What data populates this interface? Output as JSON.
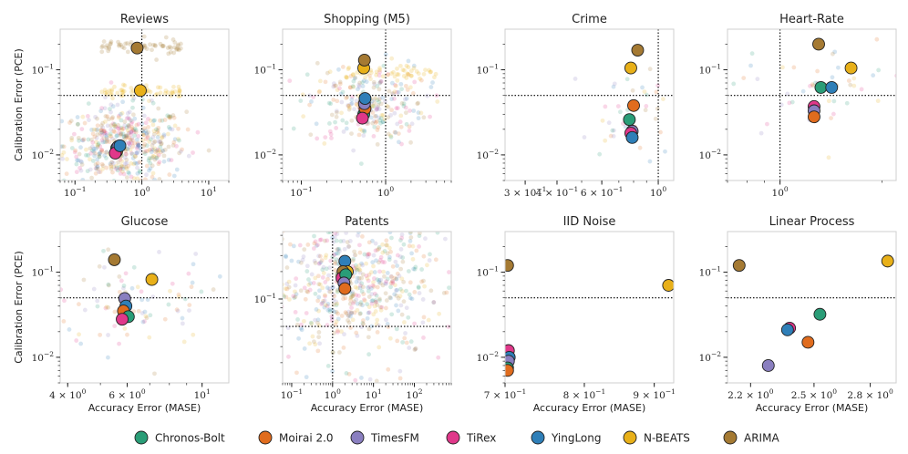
{
  "chart_data": [
    {
      "type": "scatter",
      "title": "Reviews",
      "xscale": "log",
      "yscale": "log",
      "xlim": [
        0.06,
        20
      ],
      "ylim": [
        0.005,
        0.3
      ],
      "xticks": [
        {
          "v": 0.1,
          "b": "10",
          "e": "−1"
        },
        {
          "v": 1,
          "b": "10",
          "e": "0"
        },
        {
          "v": 10,
          "b": "10",
          "e": "1"
        }
      ],
      "yticks": [
        {
          "v": 0.01,
          "b": "10",
          "e": "−2"
        },
        {
          "v": 0.1,
          "b": "10",
          "e": "−1"
        }
      ],
      "ref_x": 1,
      "ref_y": 0.05,
      "ylabel": "Calibration Error (PCE)",
      "xlabel": "",
      "cloud": {
        "n": 520,
        "x_center": 0.55,
        "x_spread": 1.3,
        "y_center": 0.013,
        "y_spread": 0.5,
        "extra": [
          {
            "model": "ARIMA",
            "n": 60,
            "y": 0.19,
            "x0": 0.25,
            "x1": 4
          },
          {
            "model": "N-BEATS",
            "n": 60,
            "y": 0.055,
            "x0": 0.25,
            "x1": 4
          }
        ]
      },
      "points": [
        {
          "model": "ARIMA",
          "x": 0.85,
          "y": 0.18
        },
        {
          "model": "N-BEATS",
          "x": 0.95,
          "y": 0.057
        },
        {
          "model": "Chronos-Bolt",
          "x": 0.42,
          "y": 0.012
        },
        {
          "model": "Moirai 2.0",
          "x": 0.42,
          "y": 0.011
        },
        {
          "model": "TimesFM",
          "x": 0.44,
          "y": 0.0125
        },
        {
          "model": "TiRex",
          "x": 0.4,
          "y": 0.0105
        },
        {
          "model": "YingLong",
          "x": 0.47,
          "y": 0.0128
        }
      ]
    },
    {
      "type": "scatter",
      "title": "Shopping (M5)",
      "xscale": "log",
      "yscale": "log",
      "xlim": [
        0.06,
        6
      ],
      "ylim": [
        0.005,
        0.3
      ],
      "xticks": [
        {
          "v": 0.1,
          "b": "10",
          "e": "−1"
        },
        {
          "v": 1,
          "b": "10",
          "e": "0"
        }
      ],
      "yticks": [
        {
          "v": 0.01,
          "b": "10",
          "e": "−2"
        },
        {
          "v": 0.1,
          "b": "10",
          "e": "−1"
        }
      ],
      "ref_x": 1,
      "ref_y": 0.05,
      "ylabel": "",
      "xlabel": "",
      "cloud": {
        "n": 260,
        "x_center": 0.6,
        "x_spread": 1.0,
        "y_center": 0.04,
        "y_spread": 0.55,
        "extra": [
          {
            "model": "N-BEATS",
            "n": 50,
            "y": 0.09,
            "x0": 0.3,
            "x1": 4
          }
        ]
      },
      "points": [
        {
          "model": "N-BEATS",
          "x": 0.55,
          "y": 0.105
        },
        {
          "model": "ARIMA",
          "x": 0.56,
          "y": 0.13
        },
        {
          "model": "Chronos-Bolt",
          "x": 0.55,
          "y": 0.03
        },
        {
          "model": "Moirai 2.0",
          "x": 0.57,
          "y": 0.035
        },
        {
          "model": "TimesFM",
          "x": 0.56,
          "y": 0.04
        },
        {
          "model": "TiRex",
          "x": 0.53,
          "y": 0.027
        },
        {
          "model": "YingLong",
          "x": 0.57,
          "y": 0.046
        }
      ]
    },
    {
      "type": "scatter",
      "title": "Crime",
      "xscale": "log",
      "yscale": "log",
      "xlim": [
        0.25,
        1.15
      ],
      "ylim": [
        0.005,
        0.3
      ],
      "xticks": [
        {
          "v": 0.3,
          "b": "3 × 10",
          "e": "−1"
        },
        {
          "v": 0.4,
          "b": "4 × 10",
          "e": "−1"
        },
        {
          "v": 0.6,
          "b": "6 × 10",
          "e": "−1"
        },
        {
          "v": 1,
          "b": "10",
          "e": "0"
        }
      ],
      "yticks": [
        {
          "v": 0.01,
          "b": "10",
          "e": "−2"
        },
        {
          "v": 0.1,
          "b": "10",
          "e": "−1"
        }
      ],
      "ref_x": 1,
      "ref_y": 0.05,
      "ylabel": "",
      "xlabel": "",
      "cloud": {
        "n": 40,
        "x_center": 0.8,
        "x_spread": 0.25,
        "y_center": 0.03,
        "y_spread": 0.55,
        "extra": []
      },
      "points": [
        {
          "model": "ARIMA",
          "x": 0.83,
          "y": 0.17
        },
        {
          "model": "N-BEATS",
          "x": 0.78,
          "y": 0.105
        },
        {
          "model": "Moirai 2.0",
          "x": 0.8,
          "y": 0.038
        },
        {
          "model": "Chronos-Bolt",
          "x": 0.77,
          "y": 0.026
        },
        {
          "model": "TimesFM",
          "x": 0.79,
          "y": 0.019
        },
        {
          "model": "TiRex",
          "x": 0.78,
          "y": 0.018
        },
        {
          "model": "YingLong",
          "x": 0.79,
          "y": 0.016
        }
      ]
    },
    {
      "type": "scatter",
      "title": "Heart-Rate",
      "xscale": "log",
      "yscale": "log",
      "xlim": [
        0.7,
        2.2
      ],
      "ylim": [
        0.005,
        0.3
      ],
      "xticks": [
        {
          "v": 1,
          "b": "10",
          "e": "0"
        }
      ],
      "yticks": [
        {
          "v": 0.01,
          "b": "10",
          "e": "−2"
        },
        {
          "v": 0.1,
          "b": "10",
          "e": "−1"
        }
      ],
      "ref_x": 1,
      "ref_y": 0.05,
      "ylabel": "",
      "xlabel": "",
      "cloud": {
        "n": 45,
        "x_center": 1.3,
        "x_spread": 0.3,
        "y_center": 0.06,
        "y_spread": 0.6,
        "extra": []
      },
      "points": [
        {
          "model": "ARIMA",
          "x": 1.3,
          "y": 0.2
        },
        {
          "model": "N-BEATS",
          "x": 1.62,
          "y": 0.105
        },
        {
          "model": "Chronos-Bolt",
          "x": 1.32,
          "y": 0.062
        },
        {
          "model": "YingLong",
          "x": 1.42,
          "y": 0.062
        },
        {
          "model": "TiRex",
          "x": 1.26,
          "y": 0.037
        },
        {
          "model": "TimesFM",
          "x": 1.26,
          "y": 0.033
        },
        {
          "model": "Moirai 2.0",
          "x": 1.26,
          "y": 0.028
        }
      ]
    },
    {
      "type": "scatter",
      "title": "Glucose",
      "xscale": "log",
      "yscale": "log",
      "xlim": [
        3.8,
        12
      ],
      "ylim": [
        0.005,
        0.3
      ],
      "xticks": [
        {
          "v": 4,
          "b": "4 × 10",
          "e": "0"
        },
        {
          "v": 6,
          "b": "6 × 10",
          "e": "0"
        },
        {
          "v": 10,
          "b": "10",
          "e": "1"
        }
      ],
      "yticks": [
        {
          "v": 0.01,
          "b": "10",
          "e": "−2"
        },
        {
          "v": 0.1,
          "b": "10",
          "e": "−1"
        }
      ],
      "ref_x": null,
      "ref_y": 0.05,
      "ylabel": "Calibration Error (PCE)",
      "xlabel": "Accuracy Error (MASE)",
      "cloud": {
        "n": 90,
        "x_center": 6,
        "x_spread": 0.35,
        "y_center": 0.05,
        "y_spread": 0.7,
        "extra": []
      },
      "points": [
        {
          "model": "ARIMA",
          "x": 5.5,
          "y": 0.14
        },
        {
          "model": "N-BEATS",
          "x": 7.1,
          "y": 0.082
        },
        {
          "model": "TimesFM",
          "x": 5.9,
          "y": 0.049
        },
        {
          "model": "YingLong",
          "x": 5.95,
          "y": 0.04
        },
        {
          "model": "Moirai 2.0",
          "x": 5.85,
          "y": 0.035
        },
        {
          "model": "Chronos-Bolt",
          "x": 6.05,
          "y": 0.03
        },
        {
          "model": "TiRex",
          "x": 5.8,
          "y": 0.028
        }
      ]
    },
    {
      "type": "scatter",
      "title": "Patents",
      "xscale": "log",
      "yscale": "log",
      "xlim": [
        0.06,
        800
      ],
      "ylim": [
        0.012,
        0.55
      ],
      "xticks": [
        {
          "v": 0.1,
          "b": "10",
          "e": "−1"
        },
        {
          "v": 1,
          "b": "10",
          "e": "0"
        },
        {
          "v": 10,
          "b": "10",
          "e": "1"
        },
        {
          "v": 100,
          "b": "10",
          "e": "2"
        }
      ],
      "yticks": [
        {
          "v": 0.1,
          "b": "10",
          "e": "−1"
        }
      ],
      "ref_x": 1,
      "ref_y": 0.05,
      "ylabel": "",
      "xlabel": "Accuracy Error (MASE)",
      "cloud": {
        "n": 650,
        "x_center": 3,
        "x_spread": 3.2,
        "y_center": 0.15,
        "y_spread": 0.9,
        "extra": []
      },
      "points": [
        {
          "model": "YingLong",
          "x": 2.0,
          "y": 0.26
        },
        {
          "model": "N-BEATS",
          "x": 2.3,
          "y": 0.2
        },
        {
          "model": "ARIMA",
          "x": 1.8,
          "y": 0.2
        },
        {
          "model": "TiRex",
          "x": 1.7,
          "y": 0.17
        },
        {
          "model": "Chronos-Bolt",
          "x": 2.1,
          "y": 0.185
        },
        {
          "model": "TimesFM",
          "x": 1.9,
          "y": 0.15
        },
        {
          "model": "Moirai 2.0",
          "x": 2.0,
          "y": 0.13
        }
      ]
    },
    {
      "type": "scatter",
      "title": "IID Noise",
      "xscale": "log",
      "yscale": "log",
      "xlim": [
        0.7,
        0.93
      ],
      "ylim": [
        0.005,
        0.3
      ],
      "xticks": [
        {
          "v": 0.7,
          "b": "7 × 10",
          "e": "−1"
        },
        {
          "v": 0.8,
          "b": "8 × 10",
          "e": "−1"
        },
        {
          "v": 0.9,
          "b": "9 × 10",
          "e": "−1"
        }
      ],
      "yticks": [
        {
          "v": 0.01,
          "b": "10",
          "e": "−2"
        },
        {
          "v": 0.1,
          "b": "10",
          "e": "−1"
        }
      ],
      "ref_x": null,
      "ref_y": 0.05,
      "ylabel": "",
      "xlabel": "Accuracy Error (MASE)",
      "cloud": {
        "n": 0,
        "x_center": 0.8,
        "x_spread": 0.1,
        "y_center": 0.02,
        "y_spread": 0.5,
        "extra": []
      },
      "points": [
        {
          "model": "ARIMA",
          "x": 0.703,
          "y": 0.12
        },
        {
          "model": "N-BEATS",
          "x": 0.922,
          "y": 0.07
        },
        {
          "model": "TiRex",
          "x": 0.704,
          "y": 0.012
        },
        {
          "model": "YingLong",
          "x": 0.705,
          "y": 0.01
        },
        {
          "model": "TimesFM",
          "x": 0.704,
          "y": 0.009
        },
        {
          "model": "Chronos-Bolt",
          "x": 0.703,
          "y": 0.0075
        },
        {
          "model": "Moirai 2.0",
          "x": 0.703,
          "y": 0.007
        }
      ]
    },
    {
      "type": "scatter",
      "title": "Linear Process",
      "xscale": "log",
      "yscale": "log",
      "xlim": [
        2.1,
        2.95
      ],
      "ylim": [
        0.005,
        0.3
      ],
      "xticks": [
        {
          "v": 2.2,
          "b": "2.2 × 10",
          "e": "0"
        },
        {
          "v": 2.5,
          "b": "2.5 × 10",
          "e": "0"
        },
        {
          "v": 2.8,
          "b": "2.8 × 10",
          "e": "0"
        }
      ],
      "yticks": [
        {
          "v": 0.01,
          "b": "10",
          "e": "−2"
        },
        {
          "v": 0.1,
          "b": "10",
          "e": "−1"
        }
      ],
      "ref_x": null,
      "ref_y": 0.05,
      "ylabel": "",
      "xlabel": "Accuracy Error (MASE)",
      "cloud": {
        "n": 0,
        "x_center": 2.5,
        "x_spread": 0.1,
        "y_center": 0.02,
        "y_spread": 0.5,
        "extra": []
      },
      "points": [
        {
          "model": "ARIMA",
          "x": 2.15,
          "y": 0.12
        },
        {
          "model": "N-BEATS",
          "x": 2.9,
          "y": 0.135
        },
        {
          "model": "Chronos-Bolt",
          "x": 2.53,
          "y": 0.032
        },
        {
          "model": "TiRex",
          "x": 2.38,
          "y": 0.022
        },
        {
          "model": "YingLong",
          "x": 2.37,
          "y": 0.021
        },
        {
          "model": "Moirai 2.0",
          "x": 2.47,
          "y": 0.015
        },
        {
          "model": "TimesFM",
          "x": 2.28,
          "y": 0.008
        }
      ]
    }
  ],
  "legend": {
    "position": "bottom-center",
    "items": [
      {
        "label": "Chronos-Bolt",
        "color": "#2a9d77"
      },
      {
        "label": "Moirai 2.0",
        "color": "#e06c1e"
      },
      {
        "label": "TimesFM",
        "color": "#8a7fc0"
      },
      {
        "label": "TiRex",
        "color": "#e0388a"
      },
      {
        "label": "YingLong",
        "color": "#2f7fb8"
      },
      {
        "label": "N-BEATS",
        "color": "#e8b019"
      },
      {
        "label": "ARIMA",
        "color": "#a57a33"
      }
    ]
  }
}
